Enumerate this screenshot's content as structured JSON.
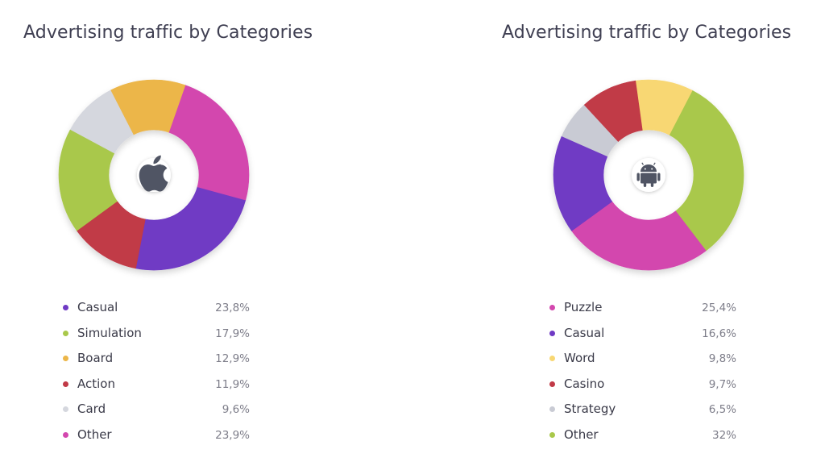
{
  "chart_data": [
    {
      "type": "pie",
      "title": "Advertising traffic by Categories",
      "center_icon": "apple-icon",
      "slices": [
        {
          "label": "Casual",
          "value": 23.8,
          "display": "23,8%",
          "color": "#6f3ac4"
        },
        {
          "label": "Simulation",
          "value": 17.9,
          "display": "17,9%",
          "color": "#a9c84b"
        },
        {
          "label": "Board",
          "value": 12.9,
          "display": "12,9%",
          "color": "#ecb649"
        },
        {
          "label": "Action",
          "value": 11.9,
          "display": "11,9%",
          "color": "#c13a47"
        },
        {
          "label": "Card",
          "value": 9.6,
          "display": "9,6%",
          "color": "#d5d7de"
        },
        {
          "label": "Other",
          "value": 23.9,
          "display": "23,9%",
          "color": "#d347ae"
        }
      ]
    },
    {
      "type": "pie",
      "title": "Advertising traffic by Categories",
      "center_icon": "android-icon",
      "slices": [
        {
          "label": "Puzzle",
          "value": 25.4,
          "display": "25,4%",
          "color": "#d347ae"
        },
        {
          "label": "Casual",
          "value": 16.6,
          "display": "16,6%",
          "color": "#6f3ac4"
        },
        {
          "label": "Word",
          "value": 9.8,
          "display": "9,8%",
          "color": "#f8d773"
        },
        {
          "label": "Casino",
          "value": 9.7,
          "display": "9,7%",
          "color": "#c13a47"
        },
        {
          "label": "Strategy",
          "value": 6.5,
          "display": "6,5%",
          "color": "#c9cbd4"
        },
        {
          "label": "Other",
          "value": 32,
          "display": "32%",
          "color": "#a9c84b"
        }
      ]
    }
  ]
}
